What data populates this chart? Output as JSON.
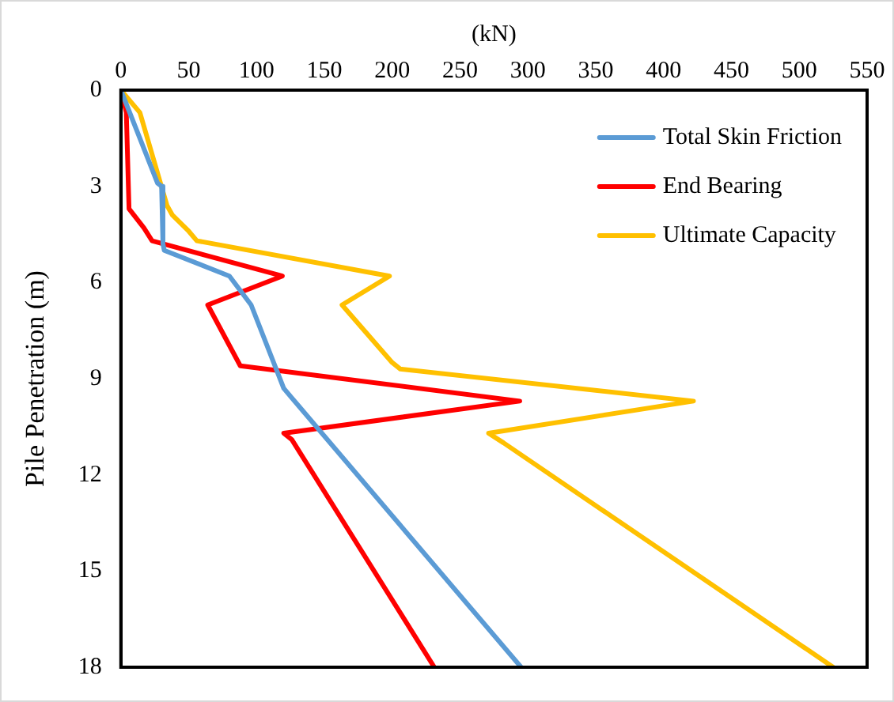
{
  "chart_data": {
    "type": "line",
    "xlabel": "(kN)",
    "ylabel": "Pile Penetration (m)",
    "xlim": [
      0,
      550
    ],
    "xticks": [
      0,
      50,
      100,
      150,
      200,
      250,
      300,
      350,
      400,
      450,
      500,
      550
    ],
    "ylim": [
      18,
      0
    ],
    "yticks": [
      0,
      3,
      6,
      9,
      12,
      15,
      18
    ],
    "grid": false,
    "legend": "top right",
    "marker": "none",
    "line_style": "solid",
    "series": [
      {
        "name": "Total Skin Friction",
        "color": "#5b9bd5",
        "x": [
          0,
          27,
          30,
          31,
          32,
          80,
          96,
          120,
          126,
          295
        ],
        "values": [
          0,
          2.9,
          3.0,
          4.8,
          5.0,
          5.8,
          6.7,
          9.3,
          9.6,
          18
        ]
      },
      {
        "name": "End Bearing",
        "color": "#ff0000",
        "x": [
          0,
          4,
          6,
          17,
          23,
          119,
          64,
          88,
          294,
          120,
          126,
          231
        ],
        "values": [
          0,
          0.7,
          3.7,
          4.3,
          4.7,
          5.8,
          6.7,
          8.6,
          9.7,
          10.7,
          10.9,
          18
        ]
      },
      {
        "name": "Ultimate Capacity",
        "color": "#ffc000",
        "x": [
          0,
          14,
          34,
          38,
          50,
          56,
          198,
          163,
          200,
          206,
          422,
          271,
          282,
          525
        ],
        "values": [
          0,
          0.7,
          3.6,
          3.9,
          4.4,
          4.7,
          5.8,
          6.7,
          8.5,
          8.7,
          9.7,
          10.7,
          11.0,
          18
        ]
      }
    ]
  }
}
